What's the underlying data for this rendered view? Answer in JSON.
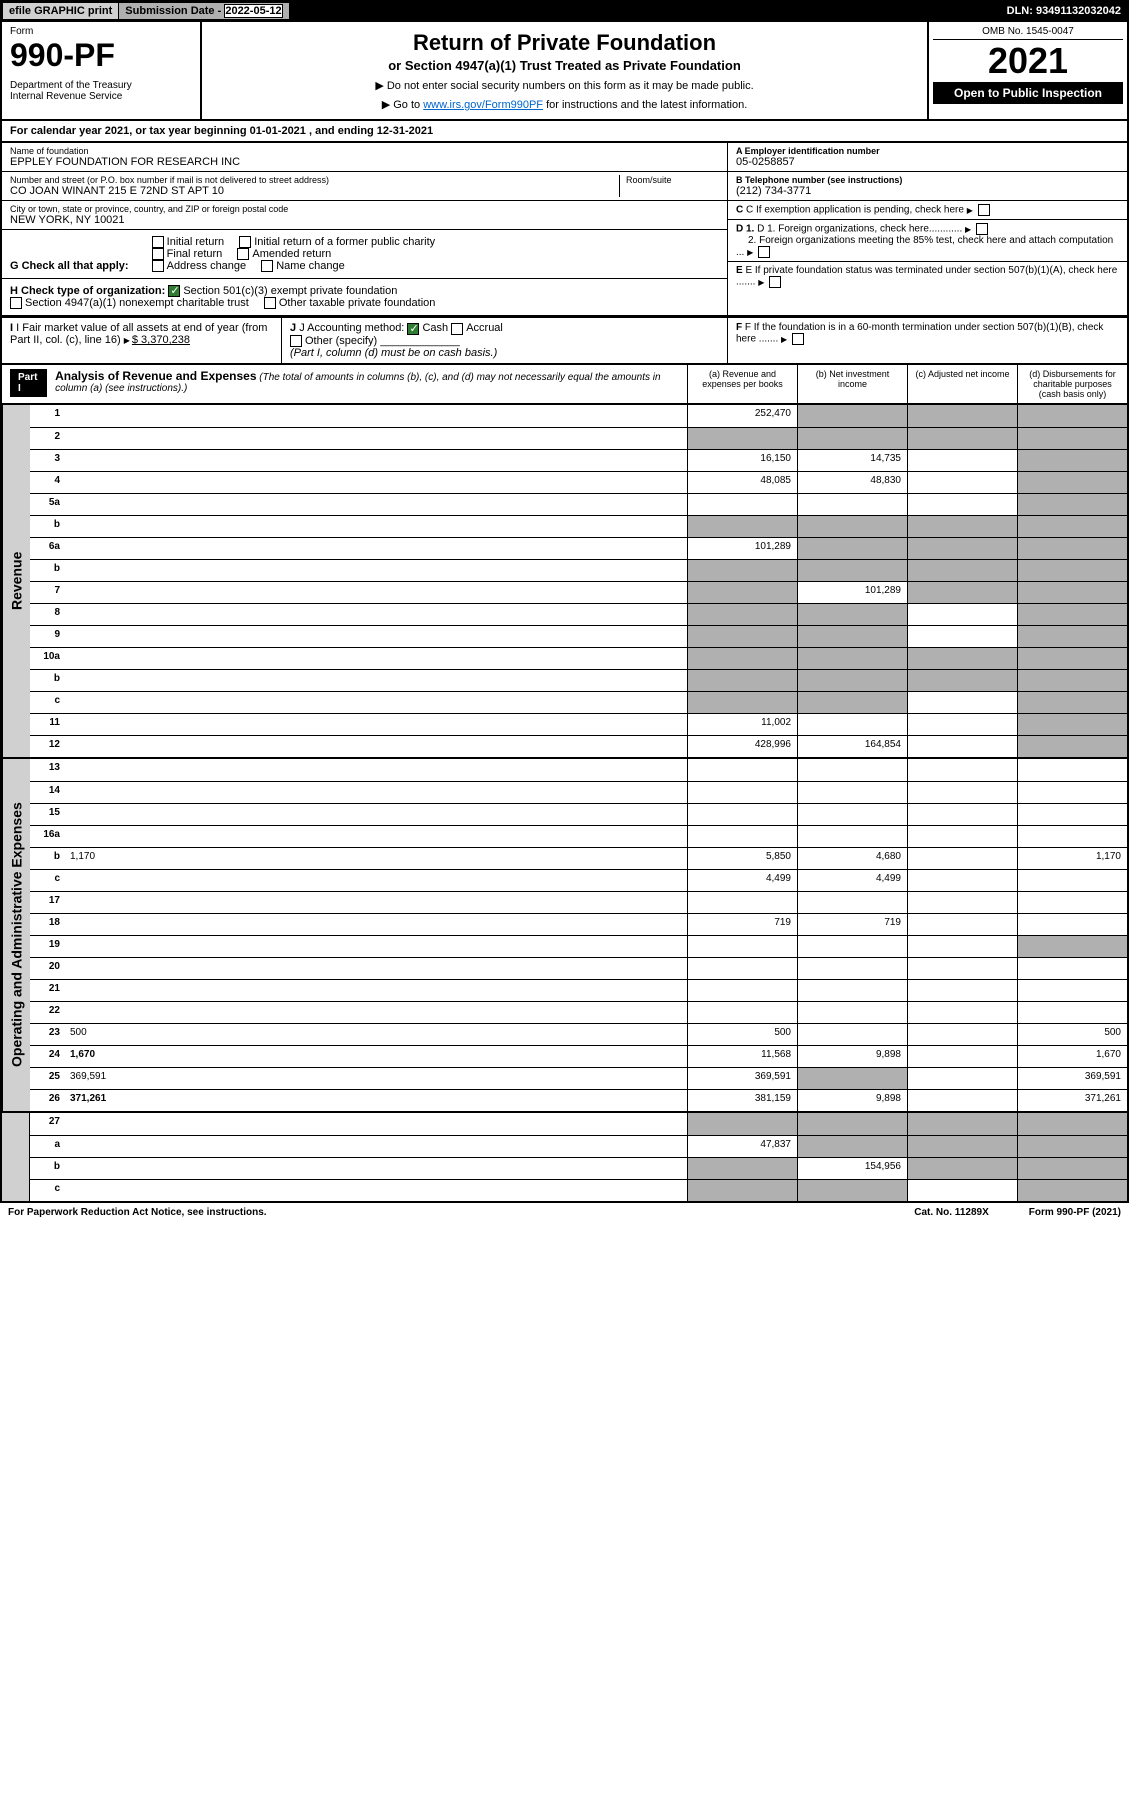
{
  "top": {
    "efile": "efile GRAPHIC print",
    "sub_label": "Submission Date - ",
    "sub_date": "2022-05-12",
    "dln": "DLN: 93491132032042"
  },
  "header": {
    "form": "Form",
    "form_num": "990-PF",
    "dept": "Department of the Treasury\nInternal Revenue Service",
    "title": "Return of Private Foundation",
    "subtitle": "or Section 4947(a)(1) Trust Treated as Private Foundation",
    "note1": "▶ Do not enter social security numbers on this form as it may be made public.",
    "note2_pre": "▶ Go to ",
    "note2_link": "www.irs.gov/Form990PF",
    "note2_post": " for instructions and the latest information.",
    "omb": "OMB No. 1545-0047",
    "year": "2021",
    "inspect": "Open to Public Inspection"
  },
  "cal": "For calendar year 2021, or tax year beginning 01-01-2021                      , and ending 12-31-2021",
  "info": {
    "name_label": "Name of foundation",
    "name": "EPPLEY FOUNDATION FOR RESEARCH INC",
    "addr_label": "Number and street (or P.O. box number if mail is not delivered to street address)",
    "addr": "CO JOAN WINANT 215 E 72ND ST APT 10",
    "room_label": "Room/suite",
    "city_label": "City or town, state or province, country, and ZIP or foreign postal code",
    "city": "NEW YORK, NY  10021",
    "ein_label": "A Employer identification number",
    "ein": "05-0258857",
    "tel_label": "B Telephone number (see instructions)",
    "tel": "(212) 734-3771",
    "c": "C If exemption application is pending, check here",
    "d1": "D 1. Foreign organizations, check here............",
    "d2": "2. Foreign organizations meeting the 85% test, check here and attach computation ...",
    "e": "E If private foundation status was terminated under section 507(b)(1)(A), check here .......",
    "f": "F If the foundation is in a 60-month termination under section 507(b)(1)(B), check here ......."
  },
  "g": {
    "label": "G Check all that apply:",
    "opts": [
      "Initial return",
      "Final return",
      "Address change",
      "Initial return of a former public charity",
      "Amended return",
      "Name change"
    ]
  },
  "h": {
    "label": "H Check type of organization:",
    "opt1": "Section 501(c)(3) exempt private foundation",
    "opt2": "Section 4947(a)(1) nonexempt charitable trust",
    "opt3": "Other taxable private foundation"
  },
  "i": {
    "label": "I Fair market value of all assets at end of year (from Part II, col. (c), line 16)",
    "val": "$  3,370,238"
  },
  "j": {
    "label": "J Accounting method:",
    "cash": "Cash",
    "accrual": "Accrual",
    "other": "Other (specify)",
    "note": "(Part I, column (d) must be on cash basis.)"
  },
  "part1": {
    "label": "Part I",
    "title": "Analysis of Revenue and Expenses",
    "sub": "(The total of amounts in columns (b), (c), and (d) may not necessarily equal the amounts in column (a) (see instructions).)",
    "cols": [
      "(a)  Revenue and expenses per books",
      "(b)  Net investment income",
      "(c)  Adjusted net income",
      "(d)  Disbursements for charitable purposes (cash basis only)"
    ]
  },
  "sides": {
    "rev": "Revenue",
    "exp": "Operating and Administrative Expenses"
  },
  "rows_rev": [
    {
      "n": "1",
      "d": "",
      "a": "252,470",
      "b": "",
      "c": "",
      "sb": true,
      "sc": true,
      "sd": true
    },
    {
      "n": "2",
      "d": "",
      "a": "",
      "b": "",
      "c": "",
      "sa": true,
      "sb": true,
      "sc": true,
      "sd": true
    },
    {
      "n": "3",
      "d": "",
      "a": "16,150",
      "b": "14,735",
      "c": "",
      "sd": true
    },
    {
      "n": "4",
      "d": "",
      "a": "48,085",
      "b": "48,830",
      "c": "",
      "sd": true
    },
    {
      "n": "5a",
      "d": "",
      "a": "",
      "b": "",
      "c": "",
      "sd": true
    },
    {
      "n": "b",
      "d": "",
      "a": "",
      "b": "",
      "c": "",
      "sa": true,
      "sb": true,
      "sc": true,
      "sd": true
    },
    {
      "n": "6a",
      "d": "",
      "a": "101,289",
      "b": "",
      "c": "",
      "sb": true,
      "sc": true,
      "sd": true
    },
    {
      "n": "b",
      "d": "",
      "a": "",
      "b": "",
      "c": "",
      "sa": true,
      "sb": true,
      "sc": true,
      "sd": true
    },
    {
      "n": "7",
      "d": "",
      "a": "",
      "b": "101,289",
      "c": "",
      "sa": true,
      "sc": true,
      "sd": true
    },
    {
      "n": "8",
      "d": "",
      "a": "",
      "b": "",
      "c": "",
      "sa": true,
      "sb": true,
      "sd": true
    },
    {
      "n": "9",
      "d": "",
      "a": "",
      "b": "",
      "c": "",
      "sa": true,
      "sb": true,
      "sd": true
    },
    {
      "n": "10a",
      "d": "",
      "a": "",
      "b": "",
      "c": "",
      "sa": true,
      "sb": true,
      "sc": true,
      "sd": true
    },
    {
      "n": "b",
      "d": "",
      "a": "",
      "b": "",
      "c": "",
      "sa": true,
      "sb": true,
      "sc": true,
      "sd": true
    },
    {
      "n": "c",
      "d": "",
      "a": "",
      "b": "",
      "c": "",
      "sa": true,
      "sb": true,
      "sd": true
    },
    {
      "n": "11",
      "d": "",
      "a": "11,002",
      "b": "",
      "c": "",
      "sd": true
    },
    {
      "n": "12",
      "d": "",
      "a": "428,996",
      "b": "164,854",
      "c": "",
      "bold": true,
      "sd": true
    }
  ],
  "rows_exp": [
    {
      "n": "13",
      "d": "",
      "a": "",
      "b": "",
      "c": ""
    },
    {
      "n": "14",
      "d": "",
      "a": "",
      "b": "",
      "c": ""
    },
    {
      "n": "15",
      "d": "",
      "a": "",
      "b": "",
      "c": ""
    },
    {
      "n": "16a",
      "d": "",
      "a": "",
      "b": "",
      "c": ""
    },
    {
      "n": "b",
      "d": "1,170",
      "a": "5,850",
      "b": "4,680",
      "c": ""
    },
    {
      "n": "c",
      "d": "",
      "a": "4,499",
      "b": "4,499",
      "c": ""
    },
    {
      "n": "17",
      "d": "",
      "a": "",
      "b": "",
      "c": ""
    },
    {
      "n": "18",
      "d": "",
      "a": "719",
      "b": "719",
      "c": ""
    },
    {
      "n": "19",
      "d": "",
      "a": "",
      "b": "",
      "c": "",
      "sd": true
    },
    {
      "n": "20",
      "d": "",
      "a": "",
      "b": "",
      "c": ""
    },
    {
      "n": "21",
      "d": "",
      "a": "",
      "b": "",
      "c": ""
    },
    {
      "n": "22",
      "d": "",
      "a": "",
      "b": "",
      "c": ""
    },
    {
      "n": "23",
      "d": "500",
      "a": "500",
      "b": "",
      "c": ""
    },
    {
      "n": "24",
      "d": "1,670",
      "a": "11,568",
      "b": "9,898",
      "c": "",
      "bold": true
    },
    {
      "n": "25",
      "d": "369,591",
      "a": "369,591",
      "b": "",
      "c": "",
      "sb": true
    },
    {
      "n": "26",
      "d": "371,261",
      "a": "381,159",
      "b": "9,898",
      "c": "",
      "bold": true
    }
  ],
  "rows_bot": [
    {
      "n": "27",
      "d": "",
      "a": "",
      "b": "",
      "c": "",
      "sa": true,
      "sb": true,
      "sc": true,
      "sd": true
    },
    {
      "n": "a",
      "d": "",
      "a": "47,837",
      "b": "",
      "c": "",
      "bold": true,
      "sb": true,
      "sc": true,
      "sd": true
    },
    {
      "n": "b",
      "d": "",
      "a": "",
      "b": "154,956",
      "c": "",
      "bold": true,
      "sa": true,
      "sc": true,
      "sd": true
    },
    {
      "n": "c",
      "d": "",
      "a": "",
      "b": "",
      "c": "",
      "bold": true,
      "sa": true,
      "sb": true,
      "sd": true
    }
  ],
  "footer": {
    "left": "For Paperwork Reduction Act Notice, see instructions.",
    "mid": "Cat. No. 11289X",
    "right": "Form 990-PF (2021)"
  }
}
